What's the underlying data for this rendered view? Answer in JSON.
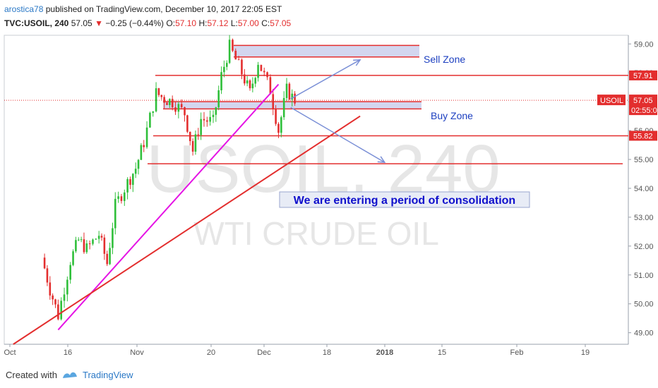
{
  "header": {
    "author": "arostica78",
    "published_text": "published on TradingView.com, December 10, 2017 22:05 EST",
    "symbol": "TVC:USOIL, 240",
    "last": "57.05",
    "change_arrow": "▼",
    "change": "−0.25 (−0.44%)",
    "open_label": "O:",
    "open": "57.10",
    "high_label": "H:",
    "high": "57.12",
    "low_label": "L:",
    "low": "57.00",
    "close_label": "C:",
    "close": "57.05"
  },
  "watermark": {
    "symbol": "USOIL, 240",
    "name": "WTI CRUDE OIL"
  },
  "annotations": {
    "sell_zone": "Sell Zone",
    "buy_zone": "Buy Zone",
    "note": "We are entering a period of consolidation"
  },
  "price_tags": {
    "symbol_tag": "USOIL",
    "last": "57.05",
    "countdown": "02:55:0",
    "resistance": "57.91",
    "support": "55.82"
  },
  "footer": {
    "created_with": "Created with",
    "brand": "TradingView"
  },
  "colors": {
    "up": "#2fbf3a",
    "down": "#e32e2e",
    "level_line": "#e32e2e",
    "trendline": "#e514e5",
    "zone_fill": "#d3d6ef",
    "arrow": "#7a8fd6",
    "note_text": "#1010cc"
  },
  "chart_data": {
    "type": "candlestick",
    "title": "TVC:USOIL, 240",
    "y_ticks": [
      "49.00",
      "50.00",
      "51.00",
      "52.00",
      "53.00",
      "54.00",
      "55.00",
      "56.00",
      "57.00",
      "58.00",
      "59.00"
    ],
    "x_ticks": [
      "Oct",
      "16",
      "Nov",
      "20",
      "Dec",
      "18",
      "2018",
      "15",
      "Feb",
      "19"
    ],
    "ylim": [
      48.6,
      59.3
    ],
    "series": [
      {
        "date": "Oct 09",
        "close": 51.6
      },
      {
        "date": "Oct 11",
        "close": 50.5
      },
      {
        "date": "Oct 13",
        "close": 49.6
      },
      {
        "date": "Oct 16",
        "close": 51.5
      },
      {
        "date": "Oct 18",
        "close": 52.2
      },
      {
        "date": "Oct 20",
        "close": 51.9
      },
      {
        "date": "Oct 23",
        "close": 52.4
      },
      {
        "date": "Oct 25",
        "close": 51.4
      },
      {
        "date": "Oct 27",
        "close": 53.4
      },
      {
        "date": "Oct 30",
        "close": 54.2
      },
      {
        "date": "Nov 01",
        "close": 54.7
      },
      {
        "date": "Nov 03",
        "close": 55.6
      },
      {
        "date": "Nov 06",
        "close": 57.3
      },
      {
        "date": "Nov 08",
        "close": 57.1
      },
      {
        "date": "Nov 10",
        "close": 57.0
      },
      {
        "date": "Nov 13",
        "close": 56.6
      },
      {
        "date": "Nov 15",
        "close": 55.3
      },
      {
        "date": "Nov 17",
        "close": 56.4
      },
      {
        "date": "Nov 20",
        "close": 56.3
      },
      {
        "date": "Nov 22",
        "close": 57.9
      },
      {
        "date": "Nov 24",
        "close": 58.9
      },
      {
        "date": "Nov 27",
        "close": 58.0
      },
      {
        "date": "Nov 29",
        "close": 57.3
      },
      {
        "date": "Dec 01",
        "close": 58.4
      },
      {
        "date": "Dec 04",
        "close": 57.4
      },
      {
        "date": "Dec 06",
        "close": 56.0
      },
      {
        "date": "Dec 08",
        "close": 57.4
      },
      {
        "date": "Dec 10",
        "close": 57.05
      }
    ],
    "levels": [
      {
        "label": "57.91",
        "value": 57.91
      },
      {
        "label": "55.82",
        "value": 55.82
      },
      {
        "label": "",
        "value": 54.85
      }
    ],
    "zones": [
      {
        "label": "Sell Zone",
        "from": 58.55,
        "to": 58.95
      },
      {
        "label": "Buy Zone",
        "from": 56.75,
        "to": 57.0
      }
    ],
    "trendlines": [
      {
        "color": "trendline",
        "from": {
          "date": "Oct 13",
          "value": 49.1
        },
        "to": {
          "date": "Dec 06",
          "value": 57.6
        }
      },
      {
        "color": "level_line",
        "from": {
          "date": "Oct 02",
          "value": 48.6
        },
        "to": {
          "date": "Dec 26",
          "value": 56.5
        }
      }
    ],
    "arrows": [
      {
        "from": {
          "date": "Dec 09",
          "value": 57.1
        },
        "to": {
          "date": "Dec 26",
          "value": 58.45
        }
      },
      {
        "from": {
          "date": "Dec 09",
          "value": 56.8
        },
        "to": {
          "date": "Jan 01",
          "value": 54.9
        }
      }
    ],
    "grid": false
  }
}
